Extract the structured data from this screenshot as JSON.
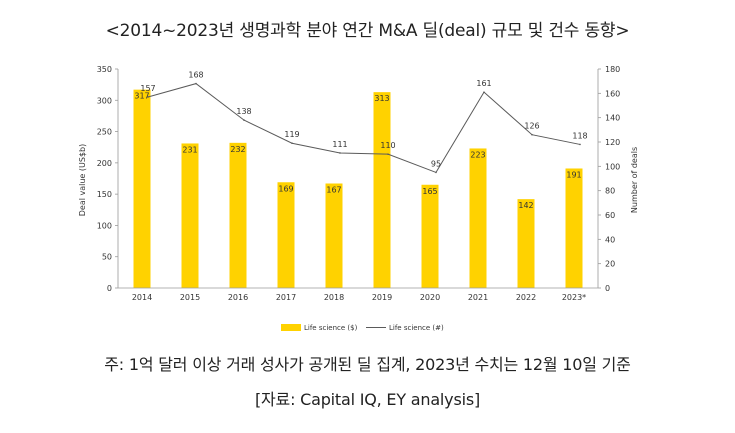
{
  "title": "<2014~2023년 생명과학 분야 연간 M&A 딜(deal) 규모 및 건수 동향>",
  "footnote": "주: 1억 달러 이상 거래 성사가 공개된 딜 집계, 2023년 수치는 12월 10일 기준",
  "source": "[자료: Capital IQ, EY analysis]",
  "colors": {
    "bar": "#FFD200",
    "line": "#5a5a5a",
    "axis": "#9a9a9a",
    "text": "#333333"
  },
  "chart_data": {
    "type": "bar",
    "categories": [
      "2014",
      "2015",
      "2016",
      "2017",
      "2018",
      "2019",
      "2020",
      "2021",
      "2022",
      "2023*"
    ],
    "series": [
      {
        "name": "Life science ($)",
        "type": "bar",
        "axis": "left",
        "values": [
          317,
          231,
          232,
          169,
          167,
          313,
          165,
          223,
          142,
          191
        ]
      },
      {
        "name": "Life science (#)",
        "type": "line",
        "axis": "right",
        "values": [
          157,
          168,
          138,
          119,
          111,
          110,
          95,
          161,
          126,
          118
        ]
      }
    ],
    "ylabel": "Deal value (US$b)",
    "y2label": "Number of deals",
    "ylim": [
      0,
      350
    ],
    "y2lim": [
      0,
      180
    ],
    "yticks": [
      "0",
      "50",
      "100",
      "150",
      "200",
      "250",
      "300",
      "350"
    ],
    "y2ticks": [
      "0",
      "20",
      "40",
      "60",
      "80",
      "100",
      "120",
      "140",
      "160",
      "180"
    ],
    "legend": [
      "Life science ($)",
      "Life science (#)"
    ]
  }
}
